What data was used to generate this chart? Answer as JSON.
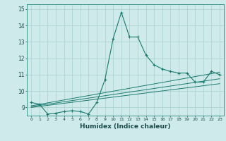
{
  "xlabel": "Humidex (Indice chaleur)",
  "ylabel": "",
  "background_color": "#ceeaea",
  "grid_color": "#a8cfcf",
  "line_color": "#1a7a6e",
  "xlim": [
    -0.5,
    23.5
  ],
  "ylim": [
    8.5,
    15.3
  ],
  "yticks": [
    9,
    10,
    11,
    12,
    13,
    14,
    15
  ],
  "xticks": [
    0,
    1,
    2,
    3,
    4,
    5,
    6,
    7,
    8,
    9,
    10,
    11,
    12,
    13,
    14,
    15,
    16,
    17,
    18,
    19,
    20,
    21,
    22,
    23
  ],
  "series1_x": [
    0,
    1,
    2,
    3,
    4,
    5,
    6,
    7,
    8,
    9,
    10,
    11,
    12,
    13,
    14,
    15,
    16,
    17,
    18,
    19,
    20,
    21,
    22,
    23
  ],
  "series1_y": [
    9.3,
    9.2,
    8.6,
    8.65,
    8.75,
    8.8,
    8.75,
    8.6,
    9.3,
    10.7,
    13.2,
    14.8,
    13.3,
    13.3,
    12.2,
    11.6,
    11.35,
    11.2,
    11.1,
    11.1,
    10.55,
    10.55,
    11.2,
    11.0
  ],
  "line2_x": [
    0,
    23
  ],
  "line2_y": [
    9.1,
    11.15
  ],
  "line3_x": [
    0,
    23
  ],
  "line3_y": [
    9.05,
    10.75
  ],
  "line4_x": [
    0,
    23
  ],
  "line4_y": [
    9.0,
    10.45
  ]
}
